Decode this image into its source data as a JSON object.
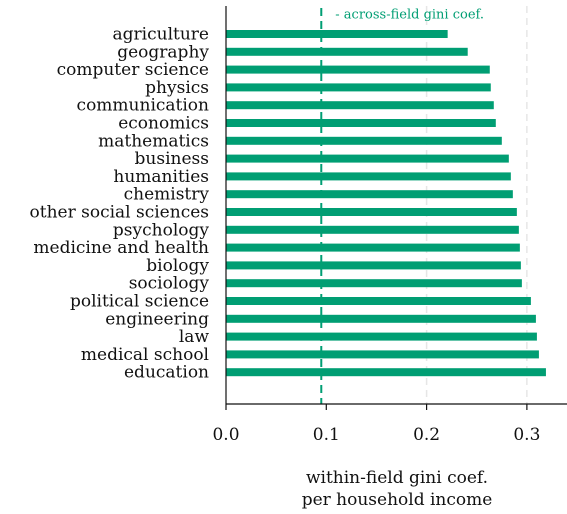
{
  "chart_data": {
    "type": "bar",
    "orientation": "horizontal",
    "categories": [
      "agriculture",
      "geography",
      "computer science",
      "physics",
      "communication",
      "economics",
      "mathematics",
      "business",
      "humanities",
      "chemistry",
      "other social sciences",
      "psychology",
      "medicine and health",
      "biology",
      "sociology",
      "political science",
      "engineering",
      "law",
      "medical school",
      "education"
    ],
    "values": [
      0.221,
      0.241,
      0.263,
      0.264,
      0.267,
      0.269,
      0.275,
      0.282,
      0.284,
      0.286,
      0.29,
      0.292,
      0.293,
      0.294,
      0.295,
      0.304,
      0.309,
      0.31,
      0.312,
      0.319
    ],
    "xlabel_lines": [
      "within-field gini coef.",
      "per household income"
    ],
    "xticks": [
      "0.0",
      "0.1",
      "0.2",
      "0.3"
    ],
    "xlim": [
      0.0,
      0.34
    ],
    "reference_line": {
      "value": 0.095,
      "label": "- across-field gini coef."
    },
    "grid": "vertical dashed at 0.2 and 0.3",
    "bar_color": "#009e73"
  }
}
